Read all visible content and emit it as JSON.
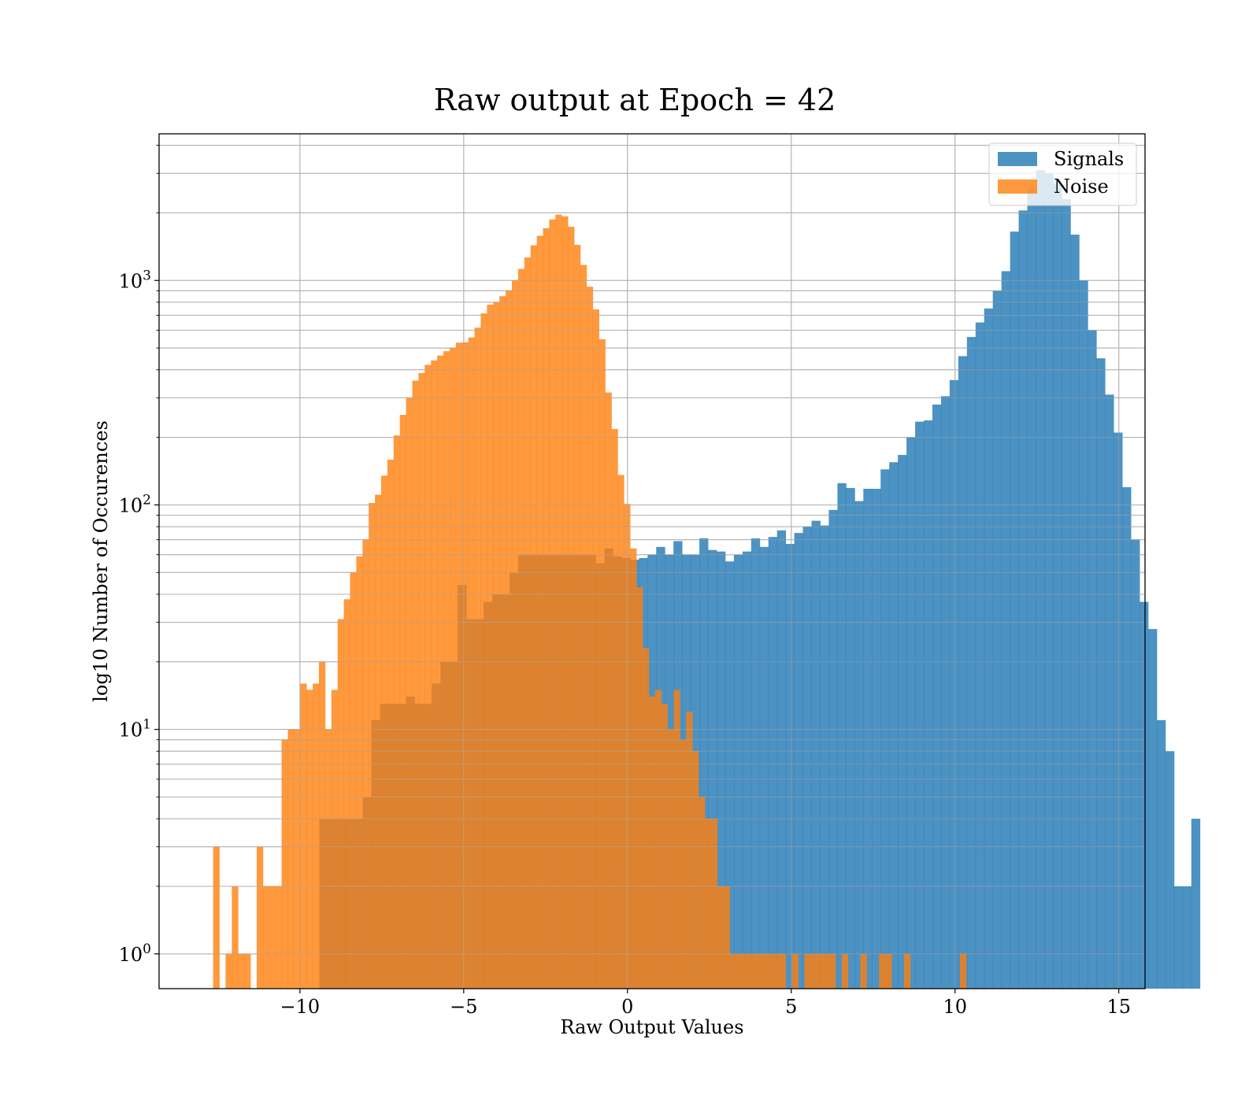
{
  "chart_data": {
    "type": "histogram",
    "title": "Raw output at Epoch = 42",
    "xlabel": "Raw Output Values",
    "ylabel": "log10 Number of Occurences",
    "yscale": "log",
    "xlim": [
      -14.3,
      15.8
    ],
    "ylim": [
      0.7,
      4500
    ],
    "grid": true,
    "legend_position": "top-right",
    "xticks": [
      {
        "value": -10,
        "label": "−10"
      },
      {
        "value": -5,
        "label": "−5"
      },
      {
        "value": 0,
        "label": "0"
      },
      {
        "value": 5,
        "label": "5"
      },
      {
        "value": 10,
        "label": "10"
      },
      {
        "value": 15,
        "label": "15"
      }
    ],
    "yticks": [
      {
        "value": 1,
        "label": "10",
        "exp": "0"
      },
      {
        "value": 10,
        "label": "10",
        "exp": "1"
      },
      {
        "value": 100,
        "label": "10",
        "exp": "2"
      },
      {
        "value": 1000,
        "label": "10",
        "exp": "3"
      }
    ],
    "series": [
      {
        "name": "Signals",
        "color": "#1f77b4",
        "opacity": 0.8,
        "bin_start": -9.4,
        "bin_width": 0.2635,
        "counts": [
          4,
          4,
          4,
          4,
          4,
          5,
          11,
          13,
          13,
          13,
          14,
          13,
          13,
          16,
          20,
          20,
          44,
          31,
          31,
          37,
          40,
          40,
          50,
          60,
          60,
          60,
          60,
          60,
          60,
          60,
          60,
          60,
          55,
          64,
          59,
          58,
          57,
          58,
          60,
          65,
          60,
          69,
          60,
          60,
          71,
          63,
          62,
          56,
          60,
          62,
          71,
          65,
          72,
          77,
          67,
          75,
          80,
          85,
          81,
          95,
          125,
          119,
          104,
          118,
          118,
          144,
          155,
          167,
          200,
          235,
          238,
          280,
          305,
          360,
          460,
          560,
          650,
          750,
          900,
          1100,
          1650,
          2050,
          2650,
          3100,
          3000,
          2700,
          2300,
          1600,
          1000,
          600,
          450,
          310,
          210,
          120,
          70,
          37,
          28,
          11,
          8,
          2,
          2,
          4
        ]
      },
      {
        "name": "Noise",
        "color": "#ff7f0e",
        "opacity": 0.8,
        "bin_start": -12.65,
        "bin_width": 0.19,
        "counts": [
          3,
          0,
          1,
          2,
          1,
          1,
          0,
          3,
          2,
          2,
          2,
          9,
          10,
          10,
          16,
          15,
          16,
          20,
          10,
          15,
          31,
          38,
          50,
          59,
          70,
          102,
          111,
          135,
          159,
          204,
          252,
          300,
          358,
          387,
          421,
          440,
          463,
          484,
          502,
          528,
          530,
          557,
          616,
          713,
          779,
          799,
          851,
          904,
          1001,
          1126,
          1265,
          1433,
          1581,
          1708,
          1870,
          1964,
          1931,
          1735,
          1440,
          1172,
          938,
          743,
          547,
          317,
          218,
          136,
          101,
          64,
          43,
          23,
          14,
          15,
          13,
          10,
          15,
          9,
          12,
          8,
          5,
          4,
          4,
          2,
          2,
          1,
          1,
          1,
          1,
          1,
          1,
          1,
          1,
          1,
          0,
          1,
          0,
          1,
          1,
          1,
          1,
          1,
          0,
          1,
          0,
          0,
          1,
          0,
          0,
          1,
          1,
          0,
          0,
          1,
          0,
          0,
          0,
          0,
          0,
          0,
          0,
          0,
          1
        ]
      }
    ]
  }
}
